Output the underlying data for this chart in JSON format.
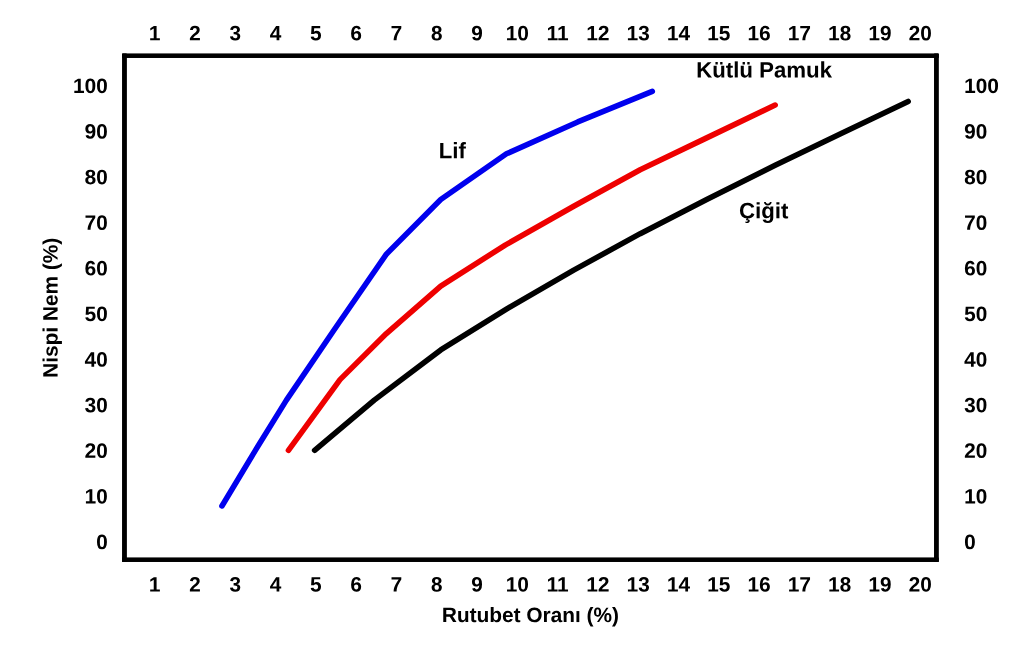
{
  "chart_data": {
    "type": "line",
    "xlabel": "Rutubet Oranı (%)",
    "ylabel": "Nispi Nem (%)",
    "xlim": [
      0.25,
      20.4
    ],
    "xticks": [
      1,
      2,
      3,
      4,
      5,
      6,
      7,
      8,
      9,
      10,
      11,
      12,
      13,
      14,
      15,
      16,
      17,
      18,
      19,
      20
    ],
    "x2lim": [
      0.25,
      20.4
    ],
    "x2ticks": [
      1,
      2,
      3,
      4,
      5,
      6,
      7,
      8,
      9,
      10,
      11,
      12,
      13,
      14,
      15,
      16,
      17,
      18,
      19,
      20
    ],
    "ylim": [
      -4,
      106.5
    ],
    "yticks": [
      0,
      10,
      20,
      30,
      40,
      50,
      60,
      70,
      80,
      90,
      100
    ],
    "y2lim": [
      -4,
      106.5
    ],
    "y2ticks": [
      0,
      10,
      20,
      30,
      40,
      50,
      60,
      70,
      80,
      90,
      100
    ],
    "grid": false,
    "legend": false,
    "marker": "none",
    "line_style": "solid",
    "series": [
      {
        "name": "Lif",
        "color": "#0000ee",
        "x": [
          2.67,
          3.5,
          4.27,
          5.46,
          6.75,
          8.1,
          9.73,
          11.5,
          13.35
        ],
        "values": [
          7.8,
          20,
          31,
          46.5,
          63,
          75,
          85,
          92,
          98.7
        ]
      },
      {
        "name": "Kütlü Pamuk",
        "color": "#ee0000",
        "x": [
          4.32,
          5.6,
          6.75,
          8.1,
          9.7,
          11.4,
          13.05,
          14.7,
          16.4
        ],
        "values": [
          20,
          35.5,
          45.6,
          56,
          65,
          73.5,
          81.5,
          88.5,
          95.7
        ]
      },
      {
        "name": "Çiğit",
        "color": "#000000",
        "x": [
          4.97,
          6.45,
          8.1,
          9.74,
          11.4,
          13.05,
          14.7,
          16.4,
          18.05,
          19.7
        ],
        "values": [
          20,
          31,
          42,
          51,
          59.5,
          67.5,
          75,
          82.5,
          89.5,
          96.5
        ]
      }
    ]
  }
}
